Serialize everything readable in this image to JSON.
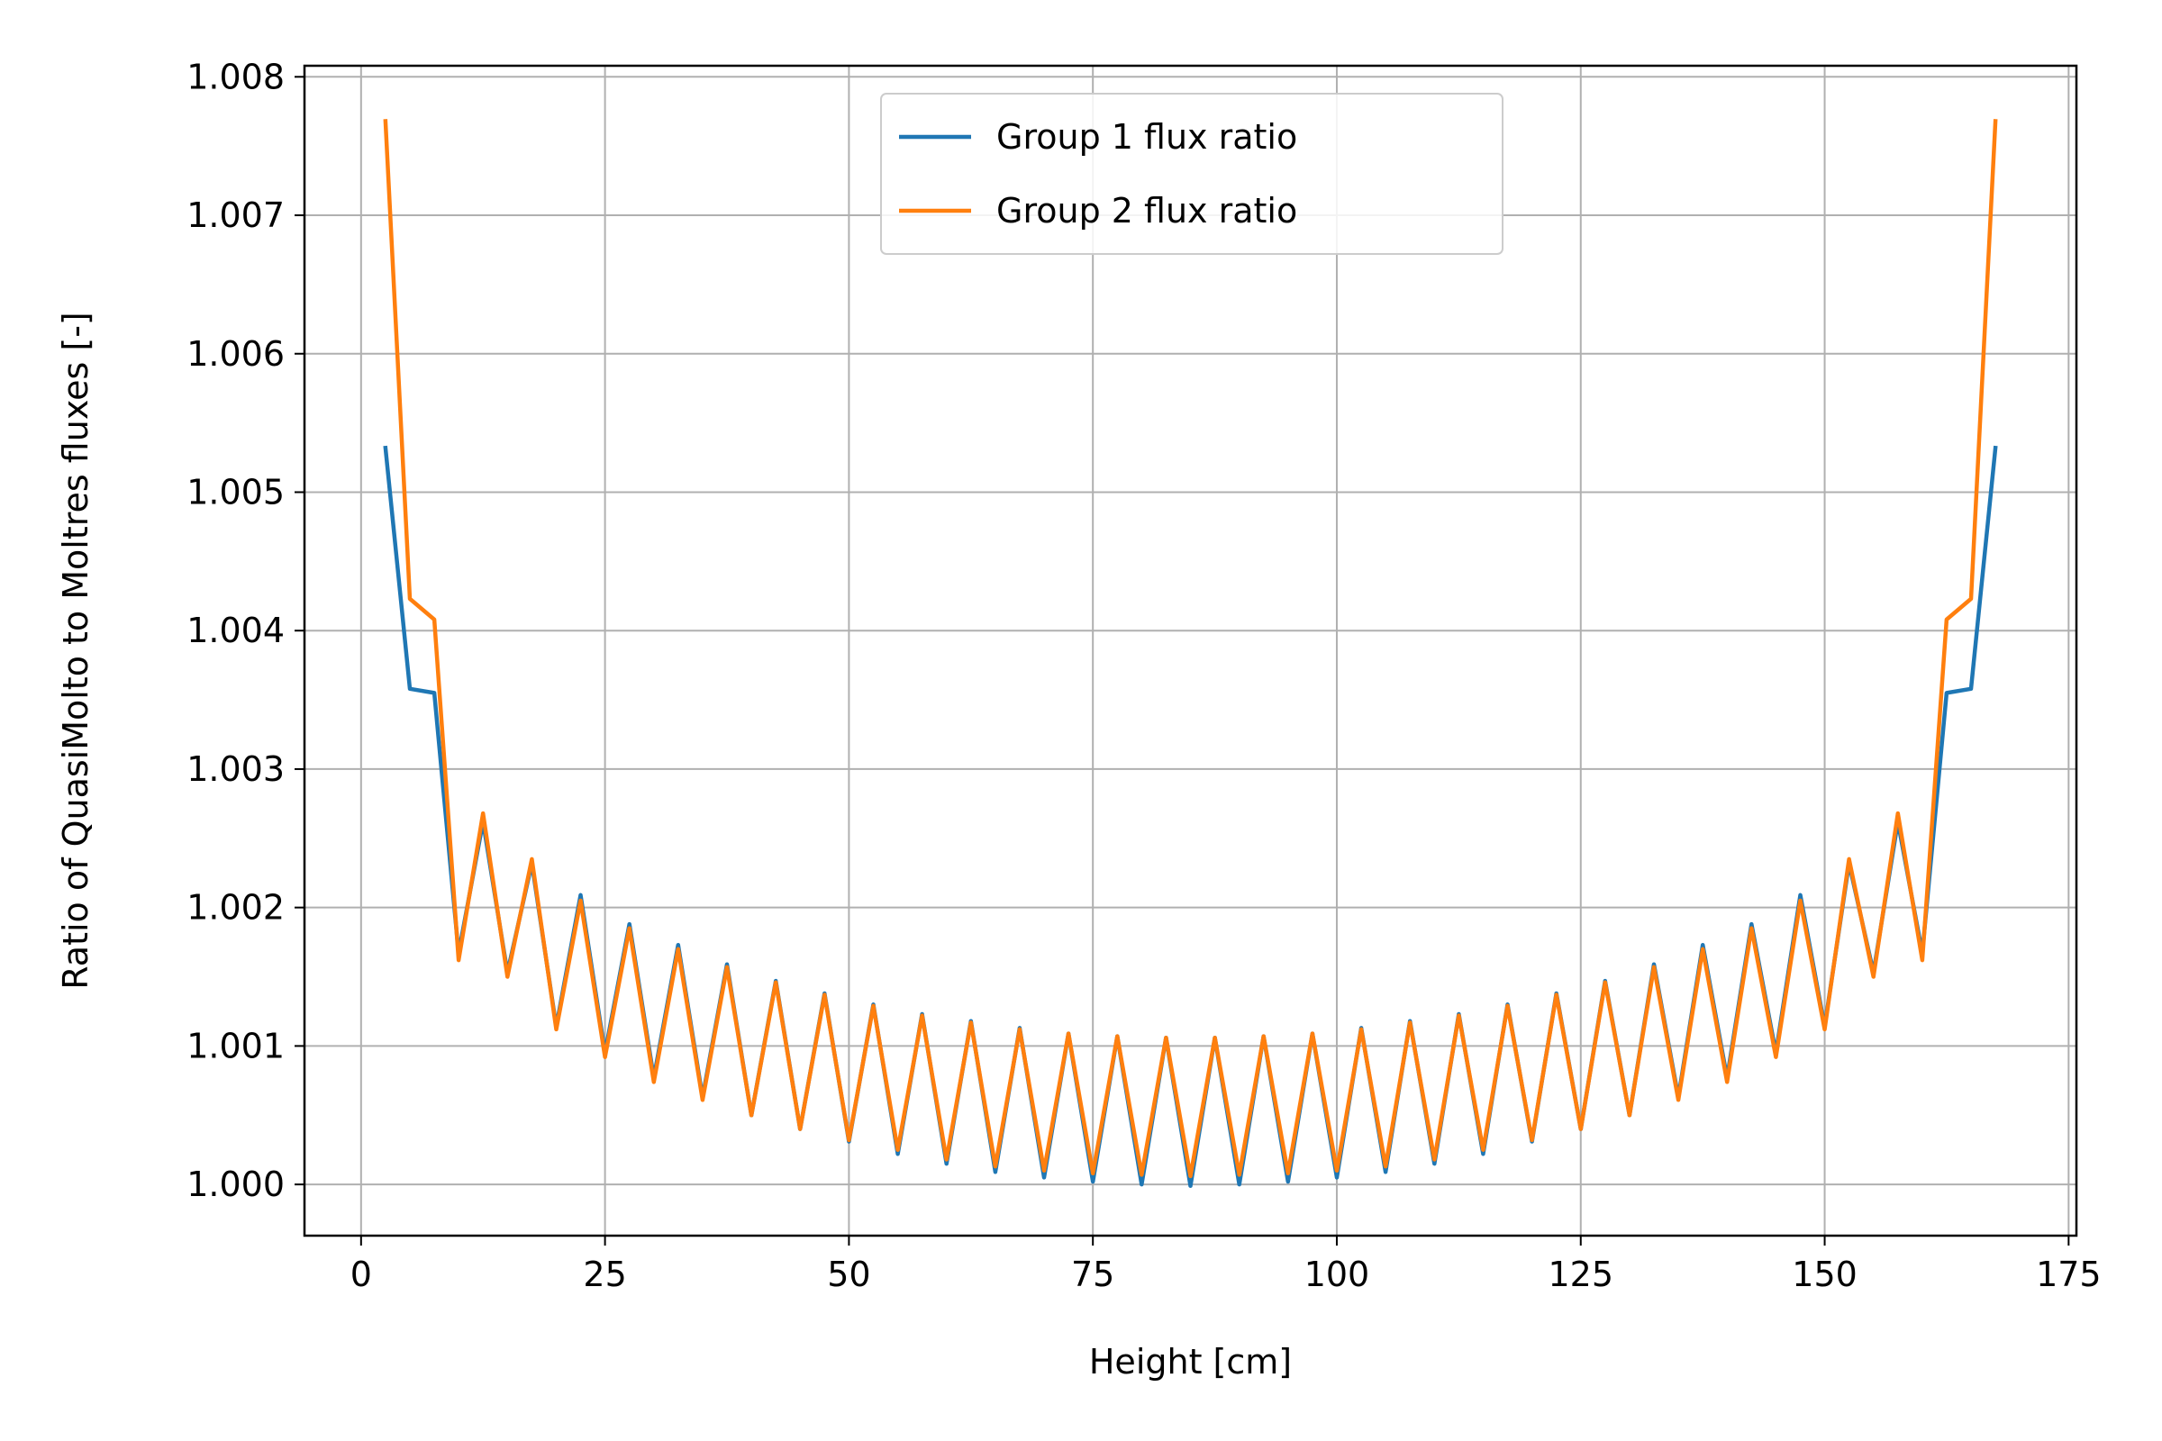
{
  "chart_data": {
    "type": "line",
    "title": "",
    "xlabel": "Height [cm]",
    "ylabel": "Ratio of QuasiMolto to Moltres fluxes [-]",
    "xlim": [
      -5.8,
      175.8
    ],
    "ylim": [
      0.99963,
      1.00808
    ],
    "xticks": [
      0,
      25,
      50,
      75,
      100,
      125,
      150,
      175
    ],
    "xtick_labels": [
      "0",
      "25",
      "50",
      "75",
      "100",
      "125",
      "150",
      "175"
    ],
    "yticks": [
      1.0,
      1.001,
      1.002,
      1.003,
      1.004,
      1.005,
      1.006,
      1.007,
      1.008
    ],
    "ytick_labels": [
      "1.000",
      "1.001",
      "1.002",
      "1.003",
      "1.004",
      "1.005",
      "1.006",
      "1.007",
      "1.008"
    ],
    "grid": true,
    "legend_position": "upper center",
    "x": [
      2.5,
      5,
      7.5,
      10,
      12.5,
      15,
      17.5,
      20,
      22.5,
      25,
      27.5,
      30,
      32.5,
      35,
      37.5,
      40,
      42.5,
      45,
      47.5,
      50,
      52.5,
      55,
      57.5,
      60,
      62.5,
      65,
      67.5,
      70,
      72.5,
      75,
      77.5,
      80,
      82.5,
      85,
      87.5,
      90,
      92.5,
      95,
      97.5,
      100,
      102.5,
      105,
      107.5,
      110,
      112.5,
      115,
      117.5,
      120,
      122.5,
      125,
      127.5,
      130,
      132.5,
      135,
      137.5,
      140,
      142.5,
      145,
      147.5,
      150,
      152.5,
      155,
      157.5,
      160,
      162.5,
      165,
      167.5
    ],
    "series": [
      {
        "name": "Group 1 flux ratio",
        "color": "#1f77b4",
        "values": [
          1.00532,
          1.00358,
          1.00355,
          1.00167,
          1.00262,
          1.00153,
          1.00232,
          1.00114,
          1.00209,
          1.00095,
          1.00188,
          1.00077,
          1.00173,
          1.00063,
          1.00159,
          1.0005,
          1.00147,
          1.0004,
          1.00138,
          1.00031,
          1.0013,
          1.00022,
          1.00123,
          1.00015,
          1.00118,
          1.00009,
          1.00113,
          1.00005,
          1.00109,
          1.00002,
          1.00107,
          1.0,
          1.00106,
          0.99999,
          1.00106,
          1.0,
          1.00107,
          1.00002,
          1.00109,
          1.00005,
          1.00113,
          1.00009,
          1.00118,
          1.00015,
          1.00123,
          1.00022,
          1.0013,
          1.00031,
          1.00138,
          1.0004,
          1.00147,
          1.0005,
          1.00159,
          1.00063,
          1.00173,
          1.00077,
          1.00188,
          1.00095,
          1.00209,
          1.00114,
          1.00232,
          1.00153,
          1.00262,
          1.00167,
          1.00355,
          1.00358,
          1.00532
        ]
      },
      {
        "name": "Group 2 flux ratio",
        "color": "#ff7f0e",
        "values": [
          1.00768,
          1.00423,
          1.00408,
          1.00162,
          1.00268,
          1.0015,
          1.00235,
          1.00112,
          1.00205,
          1.00092,
          1.00185,
          1.00074,
          1.0017,
          1.00061,
          1.00157,
          1.0005,
          1.00146,
          1.0004,
          1.00137,
          1.00032,
          1.00129,
          1.00025,
          1.00122,
          1.00018,
          1.00117,
          1.00013,
          1.00112,
          1.0001,
          1.00109,
          1.00008,
          1.00107,
          1.00007,
          1.00106,
          1.00006,
          1.00106,
          1.00007,
          1.00107,
          1.00008,
          1.00109,
          1.0001,
          1.00112,
          1.00013,
          1.00117,
          1.00018,
          1.00122,
          1.00025,
          1.00129,
          1.00032,
          1.00137,
          1.0004,
          1.00146,
          1.0005,
          1.00157,
          1.00061,
          1.0017,
          1.00074,
          1.00185,
          1.00092,
          1.00205,
          1.00112,
          1.00235,
          1.0015,
          1.00268,
          1.00162,
          1.00408,
          1.00423,
          1.00768
        ]
      }
    ]
  }
}
